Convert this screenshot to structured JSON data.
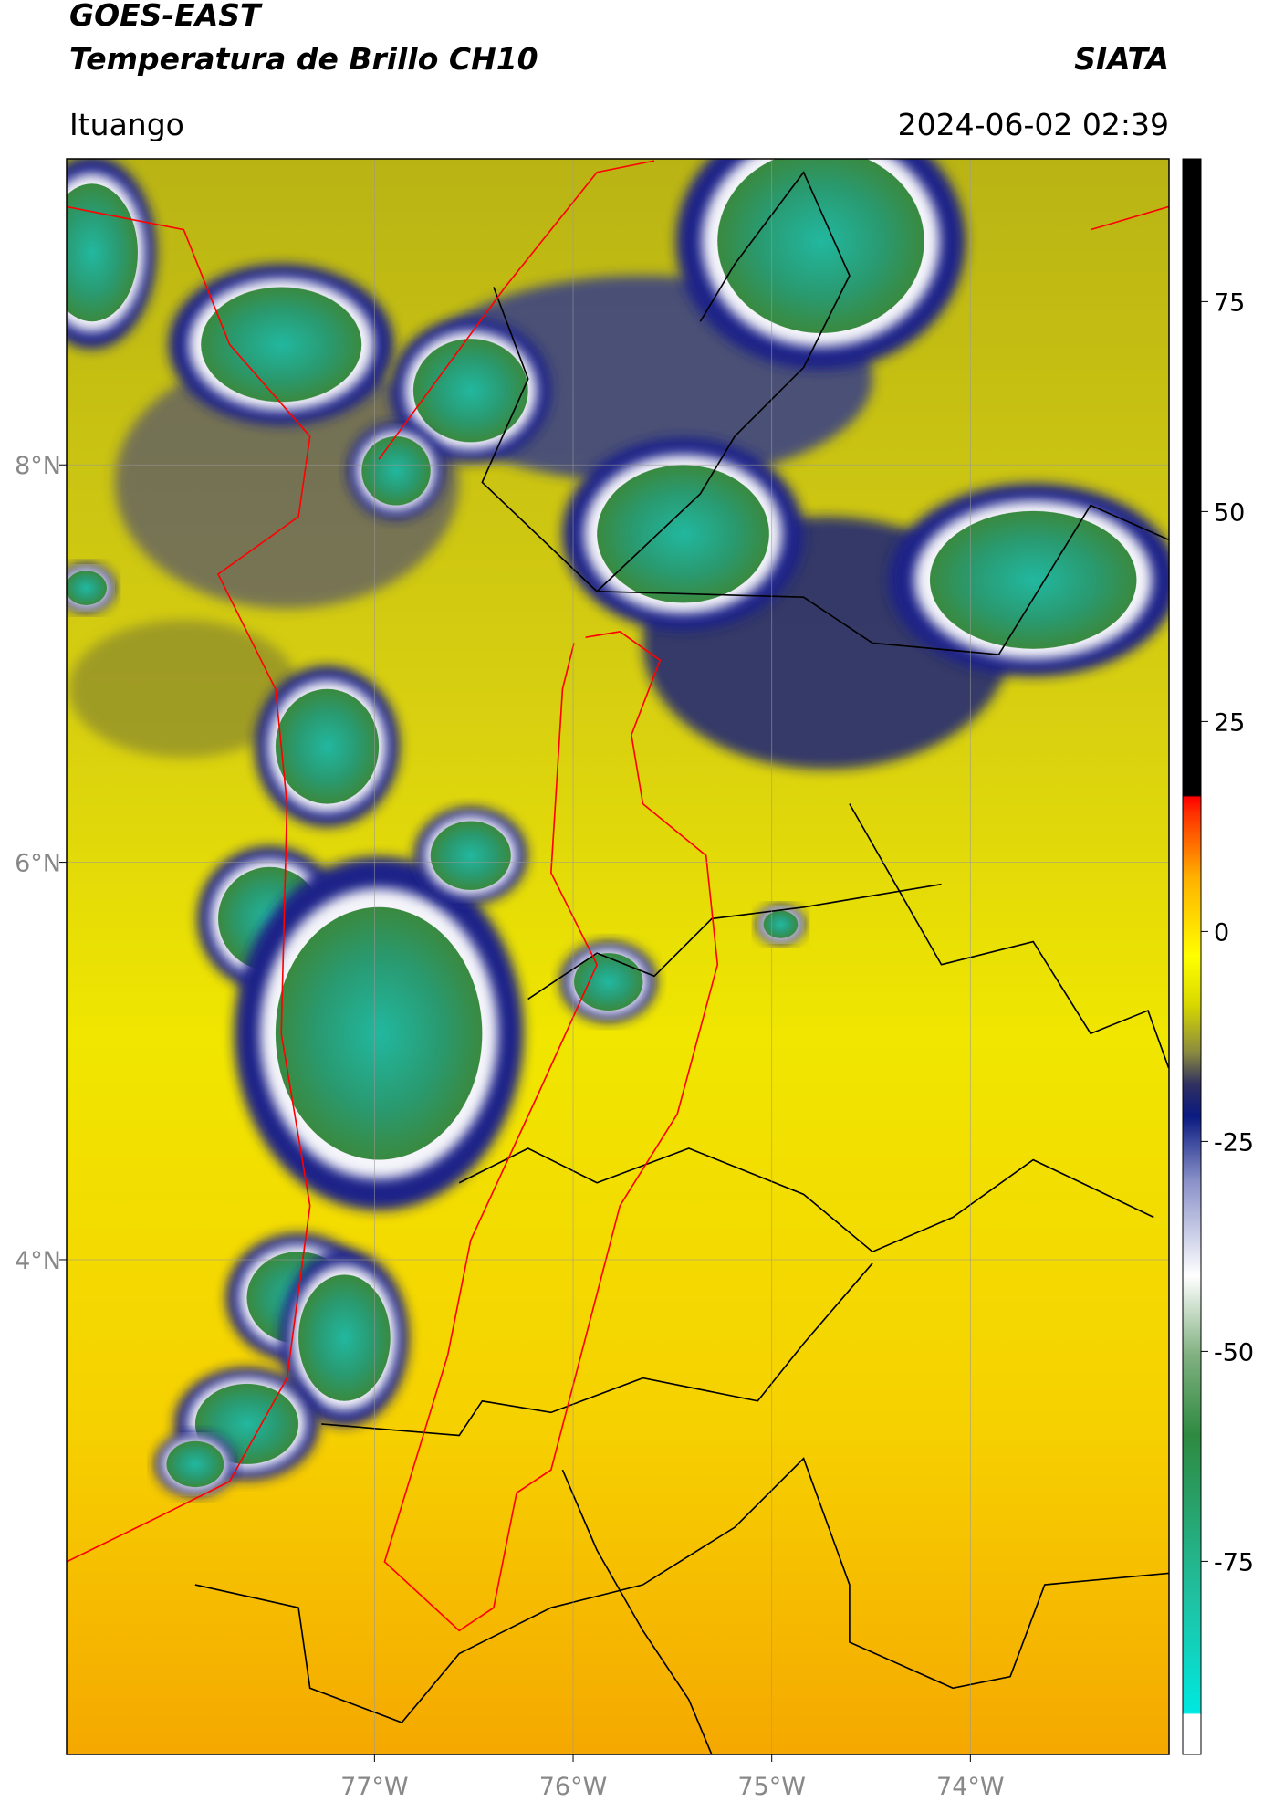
{
  "header": {
    "title_line1": "GOES-EAST",
    "title_line2": "Temperatura de Brillo CH10",
    "source": "SIATA",
    "location": "Ituango",
    "datetime": "2024-06-02 02:39"
  },
  "map": {
    "xlim": [
      -78.55,
      -73.0
    ],
    "ylim": [
      1.51,
      9.54
    ],
    "xticks": [
      {
        "value": -77,
        "label": "77°W"
      },
      {
        "value": -76,
        "label": "76°W"
      },
      {
        "value": -75,
        "label": "75°W"
      },
      {
        "value": -74,
        "label": "74°W"
      }
    ],
    "yticks": [
      {
        "value": 8,
        "label": "8°N"
      },
      {
        "value": 6,
        "label": "6°N"
      },
      {
        "value": 4,
        "label": "4°N"
      }
    ]
  },
  "colorbar": {
    "lim": [
      -98,
      92
    ],
    "ticks": [
      75,
      50,
      25,
      0,
      -25,
      -50,
      -75
    ]
  }
}
